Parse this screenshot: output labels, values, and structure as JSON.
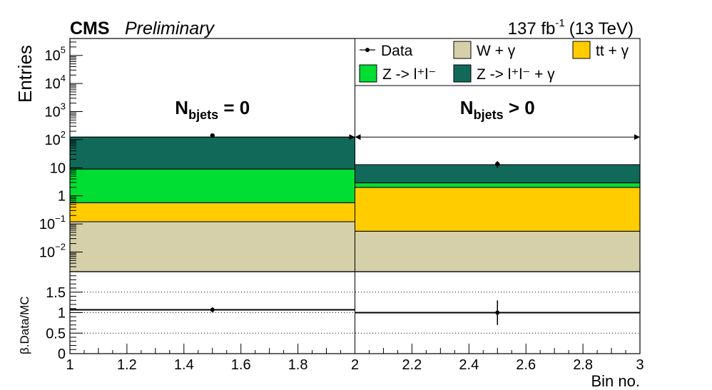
{
  "chart_data": {
    "type": "bar",
    "experiment": "CMS",
    "status": "Preliminary",
    "lumi_label": "137 fb",
    "lumi_exponent": "-1",
    "energy_label": "(13 TeV)",
    "xlabel": "Bin no.",
    "ylabel": "Entries",
    "ratio_ylabel": "β.Data/MC",
    "xlim": [
      1,
      3
    ],
    "ylim": [
      0.002,
      400000
    ],
    "y_scale": "log",
    "ratio_ylim": [
      0,
      2
    ],
    "x_ticks": [
      1,
      1.2,
      1.4,
      1.6,
      1.8,
      2,
      2.2,
      2.4,
      2.6,
      2.8,
      3
    ],
    "x_tick_labels": [
      "1",
      "1.2",
      "1.4",
      "1.6",
      "1.8",
      "2",
      "2.2",
      "2.4",
      "2.6",
      "2.8",
      "3"
    ],
    "y_ticks": [
      {
        "value": 100000,
        "base": "10",
        "exp": "5"
      },
      {
        "value": 10000,
        "base": "10",
        "exp": "4"
      },
      {
        "value": 1000,
        "base": "10",
        "exp": "3"
      },
      {
        "value": 100,
        "base": "10",
        "exp": "2"
      },
      {
        "value": 10,
        "base": "10",
        "exp": ""
      },
      {
        "value": 1,
        "base": "1",
        "exp": ""
      },
      {
        "value": 0.1,
        "base": "10",
        "exp": "−1"
      },
      {
        "value": 0.01,
        "base": "10",
        "exp": "−2"
      }
    ],
    "ratio_ticks": [
      {
        "value": 0,
        "label": "0"
      },
      {
        "value": 0.5,
        "label": "0.5"
      },
      {
        "value": 1,
        "label": "1"
      },
      {
        "value": 1.5,
        "label": "1.5"
      }
    ],
    "bins": [
      {
        "low": 1,
        "high": 2,
        "label_main": "N",
        "label_sub": "bjets",
        "label_rest": " = 0"
      },
      {
        "low": 2,
        "high": 3,
        "label_main": "N",
        "label_sub": "bjets",
        "label_rest": " > 0"
      }
    ],
    "series": [
      {
        "name": "W + γ",
        "color": "#d6d0aa",
        "values": [
          0.12,
          0.055
        ]
      },
      {
        "name": "tt + γ",
        "color": "#ffcc00",
        "values": [
          0.45,
          1.95
        ]
      },
      {
        "name": "Z ->  l⁺l⁻",
        "color": "#00dd33",
        "values": [
          8.4,
          0.9
        ]
      },
      {
        "name": "Z -> l⁺l⁻ + γ",
        "color": "#11695a",
        "values": [
          115,
          10
        ]
      }
    ],
    "data": {
      "name": "Data",
      "x": [
        1.5,
        2.5
      ],
      "y": [
        140,
        13.5
      ]
    },
    "ratio": {
      "x": [
        1.5,
        2.5
      ],
      "y": [
        1.07,
        1.0
      ],
      "err": [
        0.06,
        0.3
      ],
      "line_levels": [
        1.07,
        1.0
      ]
    },
    "legend_position": "top-right"
  }
}
